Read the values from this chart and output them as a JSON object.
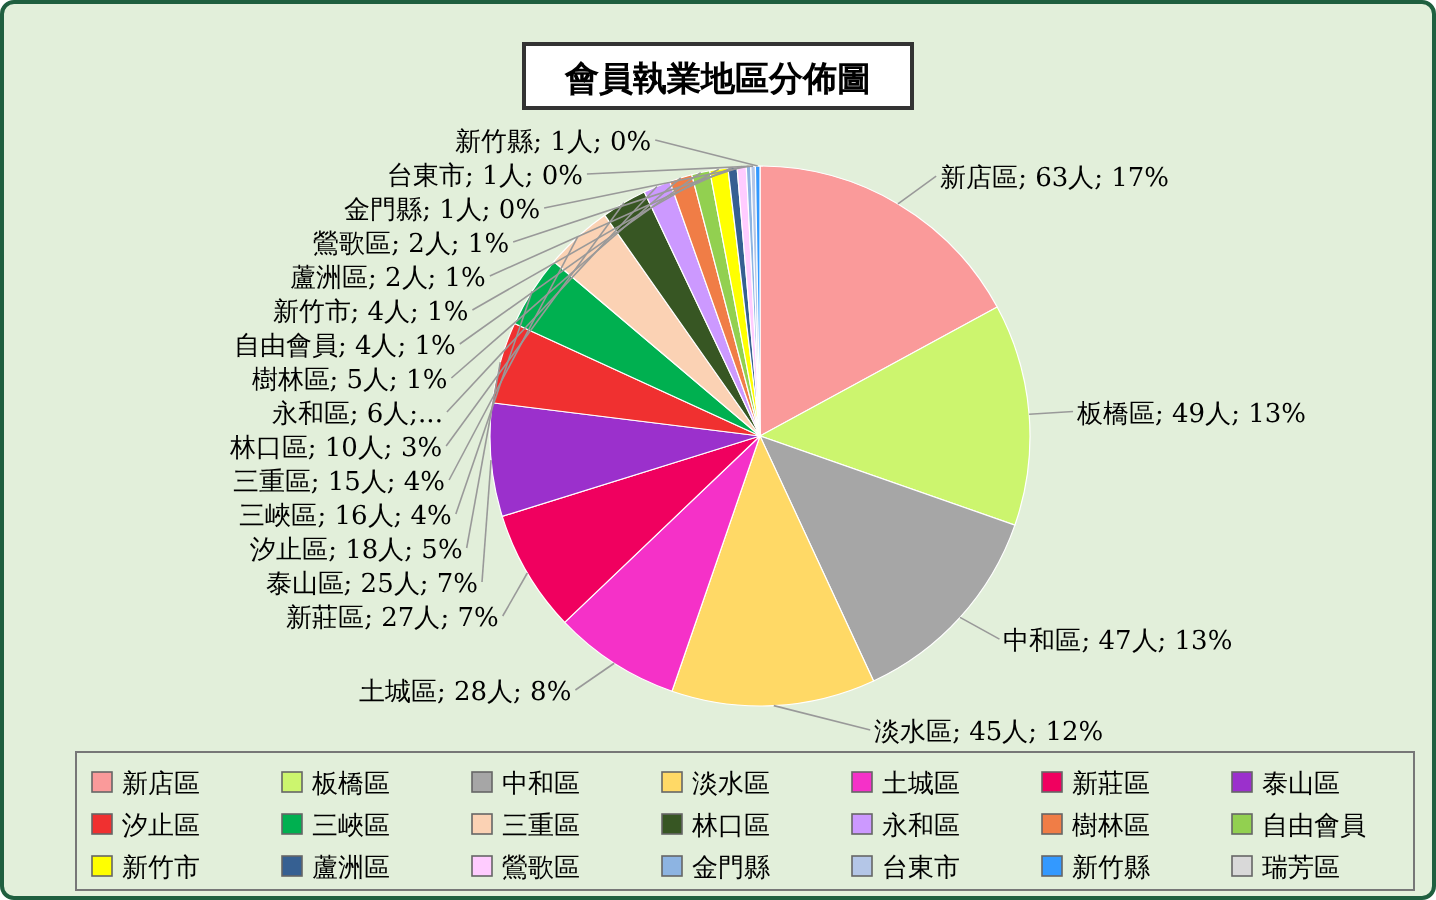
{
  "chart_data": {
    "type": "pie",
    "title": "會員執業地區分佈圖",
    "categories": [
      "新店區",
      "板橋區",
      "中和區",
      "淡水區",
      "土城區",
      "新莊區",
      "泰山區",
      "汐止區",
      "三峽區",
      "三重區",
      "林口區",
      "永和區",
      "樹林區",
      "自由會員",
      "新竹市",
      "蘆洲區",
      "鶯歌區",
      "金門縣",
      "台東市",
      "新竹縣",
      "瑞芳區"
    ],
    "values": [
      63,
      49,
      47,
      45,
      28,
      27,
      25,
      18,
      16,
      15,
      10,
      6,
      5,
      4,
      4,
      2,
      2,
      1,
      1,
      1,
      0
    ],
    "colors": [
      "#fa9a9a",
      "#ccf56e",
      "#a6a6a6",
      "#ffd966",
      "#f531c8",
      "#f0005f",
      "#9b30cc",
      "#f03030",
      "#00b050",
      "#fbd2b4",
      "#375623",
      "#cc99ff",
      "#f07d46",
      "#92d050",
      "#ffff00",
      "#366092",
      "#ffccff",
      "#8db4e2",
      "#b4c6e7",
      "#3399ff",
      "#d9d9d9"
    ],
    "value_labels": [
      "新店區; 63人; 17%",
      "板橋區; 49人; 13%",
      "中和區; 47人; 13%",
      "淡水區; 45人; 12%",
      "土城區; 28人; 8%",
      "新莊區; 27人; 7%",
      "泰山區; 25人; 7%",
      "汐止區; 18人; 5%",
      "三峽區; 16人; 4%",
      "三重區; 15人; 4%",
      "林口區; 10人; 3%",
      "永和區; 6人;...",
      "樹林區; 5人; 1%",
      "自由會員; 4人; 1%",
      "新竹市; 4人; 1%",
      "蘆洲區; 2人; 1%",
      "鶯歌區; 2人; 1%",
      "金門縣; 1人; 0%",
      "台東市; 1人; 0%",
      "新竹縣; 1人; 0%",
      null
    ],
    "legend": "bottom"
  }
}
